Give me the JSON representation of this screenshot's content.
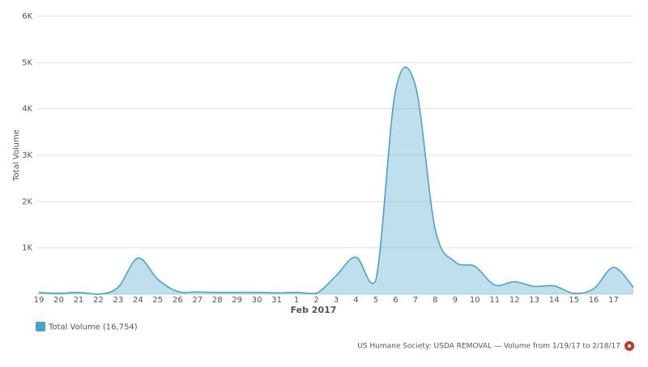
{
  "chart_data": {
    "type": "area",
    "y_label": "Total Volume",
    "x_label": "Feb 2017",
    "categories": [
      "19",
      "20",
      "21",
      "22",
      "23",
      "24",
      "25",
      "26",
      "27",
      "28",
      "29",
      "30",
      "31",
      "1",
      "2",
      "3",
      "4",
      "5",
      "6",
      "7",
      "8",
      "9",
      "10",
      "11",
      "12",
      "13",
      "14",
      "15",
      "16",
      "17",
      null
    ],
    "series": [
      {
        "name": "Total Volume (16,754)",
        "color": "#4aa3c8",
        "values": [
          40,
          20,
          40,
          0,
          150,
          780,
          320,
          60,
          50,
          40,
          40,
          40,
          30,
          40,
          20,
          400,
          800,
          300,
          4400,
          4500,
          1400,
          700,
          600,
          200,
          270,
          170,
          180,
          20,
          120,
          580,
          150
        ]
      }
    ],
    "ylim": [
      0,
      6000
    ],
    "yticks": [
      {
        "value": 1000,
        "label": "1K"
      },
      {
        "value": 2000,
        "label": "2K"
      },
      {
        "value": 3000,
        "label": "3K"
      },
      {
        "value": 4000,
        "label": "4K"
      },
      {
        "value": 5000,
        "label": "5K"
      },
      {
        "value": 6000,
        "label": "6K"
      }
    ],
    "grid": true,
    "footer": "US Humane Society: USDA REMOVAL — Volume from 1/19/17 to 2/18/17"
  }
}
